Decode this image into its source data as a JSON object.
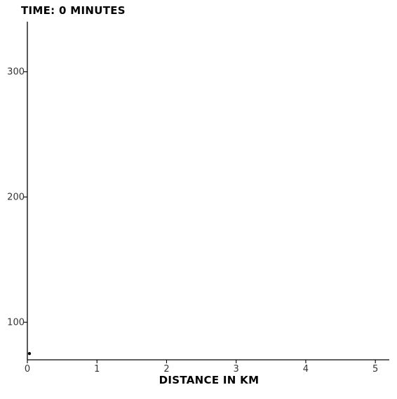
{
  "chart_data": {
    "type": "scatter",
    "title": "TIME: 0 MINUTES",
    "xlabel": "DISTANCE IN KM",
    "ylabel": "",
    "xlim": [
      0,
      5.2
    ],
    "ylim": [
      70,
      340
    ],
    "x_ticks": [
      0,
      1,
      2,
      3,
      4,
      5
    ],
    "x_tick_labels": [
      "0",
      "1",
      "2",
      "3",
      "4",
      "5"
    ],
    "y_ticks": [
      100,
      200,
      300
    ],
    "y_tick_labels": [
      "100",
      "200",
      "300"
    ],
    "grid": false,
    "legend": "none",
    "series": [
      {
        "points": [
          {
            "x": 0.03,
            "y": 75
          }
        ],
        "color": "#000000"
      }
    ]
  }
}
